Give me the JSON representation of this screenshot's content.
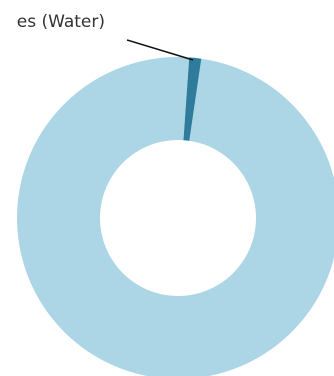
{
  "chart_data": {
    "type": "donut",
    "categories": [
      "es (Water)",
      null
    ],
    "values": [
      1.2,
      98.8
    ],
    "colors": [
      "#2e7b9b",
      "#acd6e5"
    ]
  }
}
